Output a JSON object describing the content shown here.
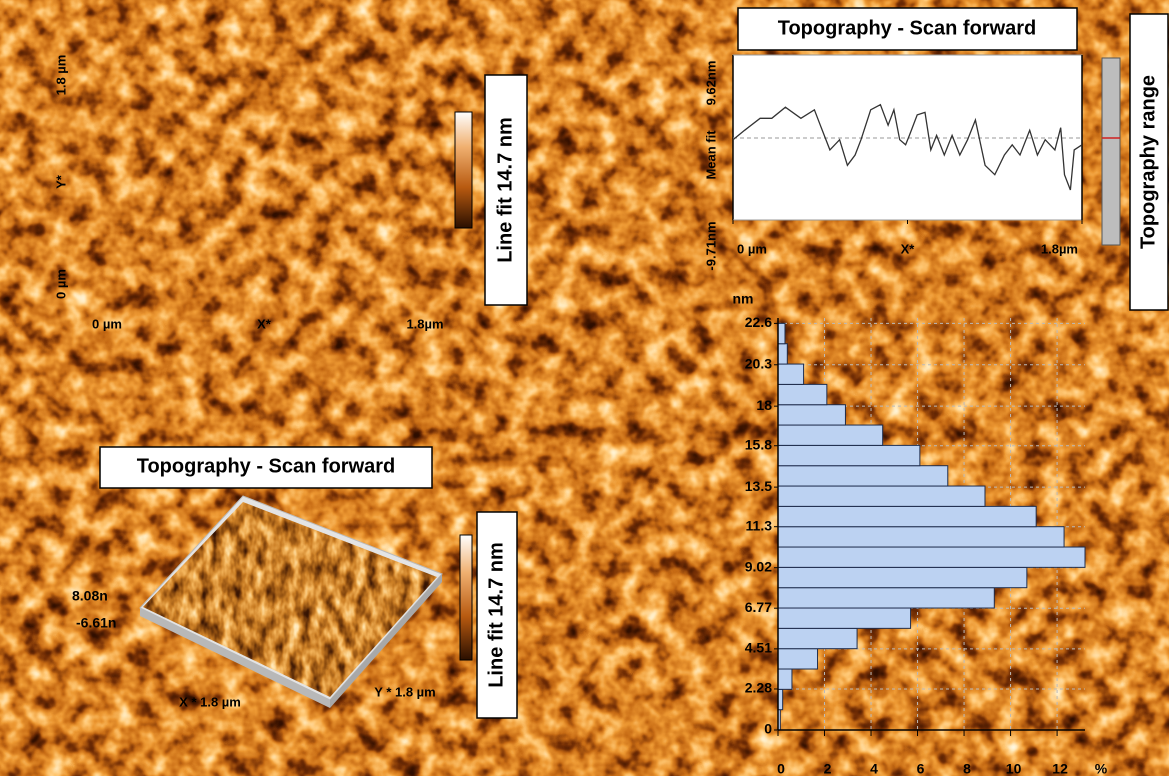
{
  "panels": [
    {
      "title": "Topography - Scan forward",
      "x_labels": [
        "0 µm",
        "X*",
        "1.8µm"
      ],
      "y_labels": [
        "1.8 µm",
        "Y*",
        "0 µm"
      ],
      "colorbar_label": "Line fit 14.7 nm"
    },
    {
      "title": "Topography - Scan forward",
      "z_labels": [
        "8.08n",
        "-6.61n"
      ],
      "x_label": "X * 1.8 µm",
      "y_label": "Y * 1.8 µm",
      "colorbar_label": "Line fit 14.7 nm"
    }
  ],
  "chart_data": [
    {
      "type": "line",
      "title": "Topography - Scan forward",
      "xlabel": "X*",
      "side_label": "Topography range",
      "color": "#333333",
      "x": [
        0,
        0.06,
        0.14,
        0.2,
        0.27,
        0.35,
        0.42,
        0.45,
        0.5,
        0.55,
        0.59,
        0.63,
        0.66,
        0.71,
        0.76,
        0.8,
        0.83,
        0.86,
        0.89,
        0.91,
        0.95,
        0.99,
        1.02,
        1.05,
        1.09,
        1.13,
        1.17,
        1.21,
        1.25,
        1.3,
        1.35,
        1.4,
        1.44,
        1.48,
        1.53,
        1.57,
        1.61,
        1.66,
        1.69,
        1.71,
        1.74,
        1.76,
        1.8
      ],
      "values": [
        -0.3,
        0.8,
        2.2,
        2.2,
        3.5,
        2.2,
        3.2,
        1.4,
        -1.5,
        -0.3,
        -3.3,
        -2.1,
        -0.3,
        3.2,
        3.8,
        1.4,
        3.2,
        -0.3,
        -0.9,
        0.2,
        2.6,
        2.9,
        -1.5,
        0.2,
        -2.1,
        0.2,
        -2.1,
        -0.3,
        2.0,
        -3.3,
        -4.4,
        -2.1,
        -0.9,
        -2.1,
        0.8,
        -2.1,
        -0.3,
        -1.5,
        1.1,
        -4.4,
        -6.2,
        -1.5,
        -0.9
      ],
      "xlim": [
        0,
        1.8
      ],
      "xticks": [
        {
          "value": 0,
          "label": "0 µm"
        },
        {
          "value": 1.8,
          "label": "1.8µm"
        }
      ],
      "ylim": [
        -9.71,
        9.62
      ],
      "yticks": [
        {
          "value": 9.62,
          "label": "9.62nm"
        },
        {
          "value": -0.1,
          "label": "Mean fit"
        },
        {
          "value": -9.71,
          "label": "-9.71nm"
        }
      ]
    },
    {
      "type": "histogram",
      "orientation": "horizontal",
      "ylabel": "nm",
      "xlabel": "%",
      "color": "#bcd2f2",
      "grid": true,
      "bins": [
        0,
        1.13,
        2.26,
        3.39,
        4.52,
        5.65,
        6.78,
        7.91,
        9.04,
        10.17,
        11.3,
        12.43,
        13.56,
        14.69,
        15.82,
        16.95,
        18.08,
        19.21,
        20.34,
        21.47,
        22.6
      ],
      "values": [
        0.1,
        0.2,
        0.6,
        1.7,
        3.4,
        5.7,
        9.3,
        10.7,
        13.2,
        12.3,
        11.1,
        8.9,
        7.3,
        6.1,
        4.5,
        2.9,
        2.1,
        1.1,
        0.4,
        0.3
      ],
      "xlim": [
        0,
        13.2
      ],
      "xticks": [
        0,
        2,
        4,
        6,
        8,
        10,
        12
      ],
      "ylim": [
        0,
        22.9
      ],
      "yticks": [
        0,
        2.28,
        4.51,
        6.77,
        9.02,
        11.3,
        13.5,
        15.8,
        18,
        20.3,
        22.6
      ]
    }
  ]
}
